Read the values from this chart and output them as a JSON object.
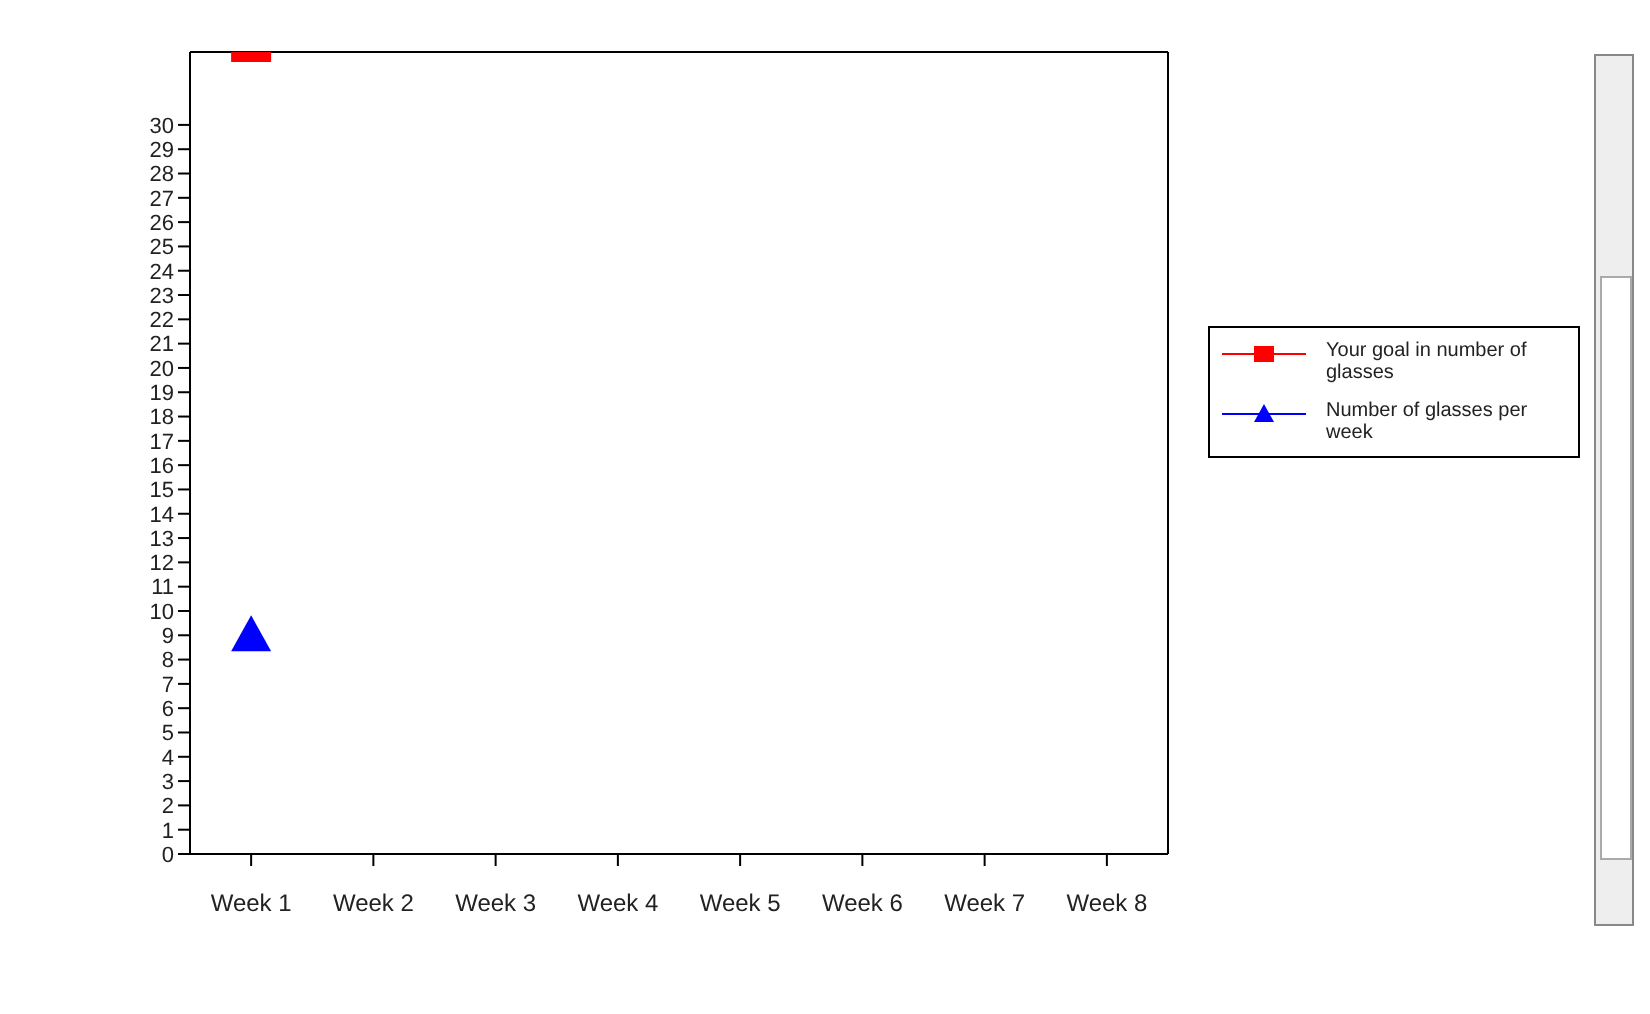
{
  "chart_data": {
    "type": "line",
    "categories": [
      "Week 1",
      "Week 2",
      "Week 3",
      "Week 4",
      "Week 5",
      "Week 6",
      "Week 7",
      "Week 8"
    ],
    "series": [
      {
        "name": "Your goal in number of glasses",
        "color": "#ff0000",
        "marker": "square",
        "values": [
          33,
          null,
          null,
          null,
          null,
          null,
          null,
          null
        ]
      },
      {
        "name": "Number of glasses per week",
        "color": "#0000ff",
        "marker": "triangle",
        "values": [
          9,
          null,
          null,
          null,
          null,
          null,
          null,
          null
        ]
      }
    ],
    "ylim": [
      0,
      33
    ],
    "yticks": [
      0,
      1,
      2,
      3,
      4,
      5,
      6,
      7,
      8,
      9,
      10,
      11,
      12,
      13,
      14,
      15,
      16,
      17,
      18,
      19,
      20,
      21,
      22,
      23,
      24,
      25,
      26,
      27,
      28,
      29,
      30
    ],
    "grid": false,
    "legend": "right"
  }
}
